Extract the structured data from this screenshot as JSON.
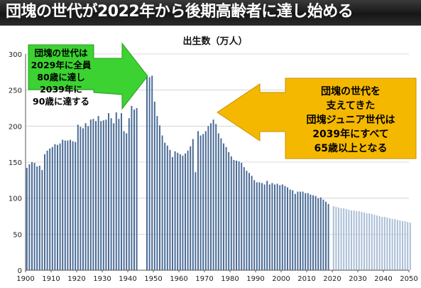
{
  "banner": {
    "title": "団塊の世代が2022年から後期高齢者に達し始める"
  },
  "callouts": {
    "green": {
      "lines": [
        "団塊の世代は",
        "2029年に全員",
        "80歳に達し",
        "2039年に",
        "90歳に達する"
      ],
      "fill": "#3cd232",
      "arrow": "right"
    },
    "orange": {
      "lines": [
        "団塊の世代を",
        "支えてきた",
        "団塊ジュニア世代は",
        "2039年にすべて",
        "65歳以上となる"
      ],
      "fill": "#f5b800",
      "arrow": "left"
    }
  },
  "chart_data": {
    "type": "bar",
    "title": "出生数（万人）",
    "xlabel": "",
    "ylabel": "",
    "xlim": [
      1900,
      2050
    ],
    "ylim": [
      0,
      300
    ],
    "x_ticks": [
      1900,
      1910,
      1920,
      1930,
      1940,
      1950,
      1960,
      1970,
      1980,
      1990,
      2000,
      2010,
      2020,
      2030,
      2040,
      2050
    ],
    "y_ticks": [
      0,
      50,
      100,
      150,
      200,
      250,
      300
    ],
    "grid": true,
    "colors": {
      "actual": "#4a6b96",
      "projected": "#a9bdd6"
    },
    "series": [
      {
        "x": [
          1900,
          1901,
          1902,
          1903,
          1904,
          1905,
          1906,
          1907,
          1908,
          1909,
          1910,
          1911,
          1912,
          1913,
          1914,
          1915,
          1916,
          1917,
          1918,
          1919,
          1920,
          1921,
          1922,
          1923,
          1924,
          1925,
          1926,
          1927,
          1928,
          1929,
          1930,
          1931,
          1932,
          1933,
          1934,
          1935,
          1936,
          1937,
          1938,
          1939,
          1940,
          1941,
          1942,
          1943,
          1947,
          1948,
          1949,
          1950,
          1951,
          1952,
          1953,
          1954,
          1955,
          1956,
          1957,
          1958,
          1959,
          1960,
          1961,
          1962,
          1963,
          1964,
          1965,
          1966,
          1967,
          1968,
          1969,
          1970,
          1971,
          1972,
          1973,
          1974,
          1975,
          1976,
          1977,
          1978,
          1979,
          1980,
          1981,
          1982,
          1983,
          1984,
          1985,
          1986,
          1987,
          1988,
          1989,
          1990,
          1991,
          1992,
          1993,
          1994,
          1995,
          1996,
          1997,
          1998,
          1999,
          2000,
          2001,
          2002,
          2003,
          2004,
          2005,
          2006,
          2007,
          2008,
          2009,
          2010,
          2011,
          2012,
          2013,
          2014,
          2015,
          2016,
          2017,
          2018
        ],
        "values": [
          142,
          147,
          150,
          149,
          144,
          145,
          139,
          161,
          166,
          169,
          171,
          175,
          174,
          176,
          181,
          180,
          180,
          181,
          179,
          178,
          202,
          199,
          197,
          204,
          200,
          209,
          210,
          207,
          214,
          207,
          208,
          209,
          218,
          211,
          204,
          219,
          210,
          218,
          193,
          190,
          211,
          228,
          223,
          225,
          268,
          268,
          270,
          234,
          214,
          201,
          187,
          177,
          173,
          167,
          157,
          165,
          163,
          161,
          159,
          162,
          166,
          172,
          182,
          136,
          193,
          187,
          189,
          193,
          200,
          204,
          209,
          203,
          190,
          183,
          176,
          171,
          164,
          158,
          153,
          152,
          151,
          149,
          143,
          138,
          135,
          131,
          125,
          122,
          122,
          121,
          119,
          124,
          119,
          121,
          119,
          120,
          118,
          119,
          117,
          115,
          112,
          111,
          106,
          109,
          109,
          109,
          107,
          107,
          105,
          104,
          103,
          100,
          101,
          98,
          95,
          92
        ]
      },
      {
        "x": [
          2020,
          2021,
          2022,
          2023,
          2024,
          2025,
          2026,
          2027,
          2028,
          2029,
          2030,
          2031,
          2032,
          2033,
          2034,
          2035,
          2036,
          2037,
          2038,
          2039,
          2040,
          2041,
          2042,
          2043,
          2044,
          2045,
          2046,
          2047,
          2048,
          2049,
          2050
        ],
        "values": [
          89,
          88,
          87,
          86,
          86,
          85,
          84,
          83,
          83,
          82,
          82,
          81,
          80,
          79,
          79,
          78,
          77,
          76,
          75,
          74,
          74,
          73,
          72,
          71,
          71,
          70,
          69,
          68,
          68,
          67,
          66
        ]
      }
    ]
  }
}
